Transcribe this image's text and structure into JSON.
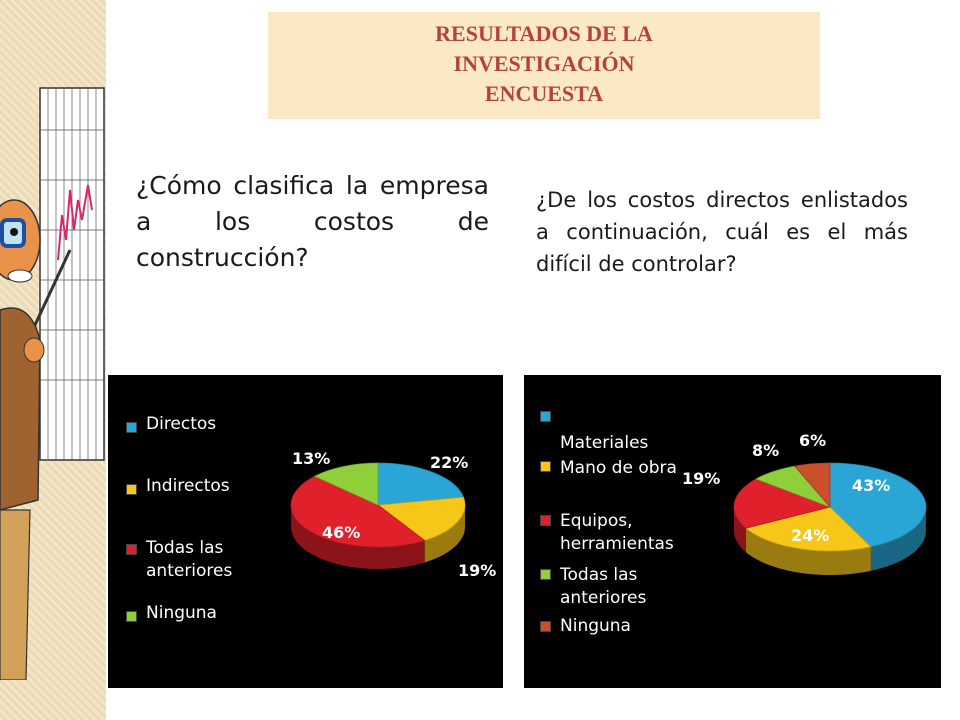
{
  "title": {
    "line1": "RESULTADOS DE LA",
    "line2": "INVESTIGACIÓN",
    "line3": "ENCUESTA"
  },
  "question1": "¿Cómo clasifica la empresa a los costos de construcción?",
  "question2": "¿De los costos directos enlistados a continuación, cuál es el más difícil de controlar?",
  "chart_data": [
    {
      "type": "pie",
      "title": "",
      "categories": [
        "Directos",
        "Indirectos",
        "Todas las anteriores",
        "Ninguna"
      ],
      "values": [
        22,
        19,
        46,
        13
      ],
      "labels": [
        "22%",
        "19%",
        "46%",
        "13%"
      ],
      "colors": [
        "#2aa6d6",
        "#f6c619",
        "#e0202a",
        "#8fcf3a"
      ],
      "legend_position": "left"
    },
    {
      "type": "pie",
      "title": "",
      "categories": [
        "Materiales",
        "Mano de obra",
        "Equipos, herramientas",
        "Todas las anteriores",
        "Ninguna"
      ],
      "values": [
        43,
        24,
        19,
        8,
        6
      ],
      "labels": [
        "43%",
        "24%",
        "19%",
        "8%",
        "6%"
      ],
      "colors": [
        "#2aa6d6",
        "#f6c619",
        "#e0202a",
        "#8fcf3a",
        "#c9502a"
      ],
      "legend_position": "left"
    }
  ]
}
